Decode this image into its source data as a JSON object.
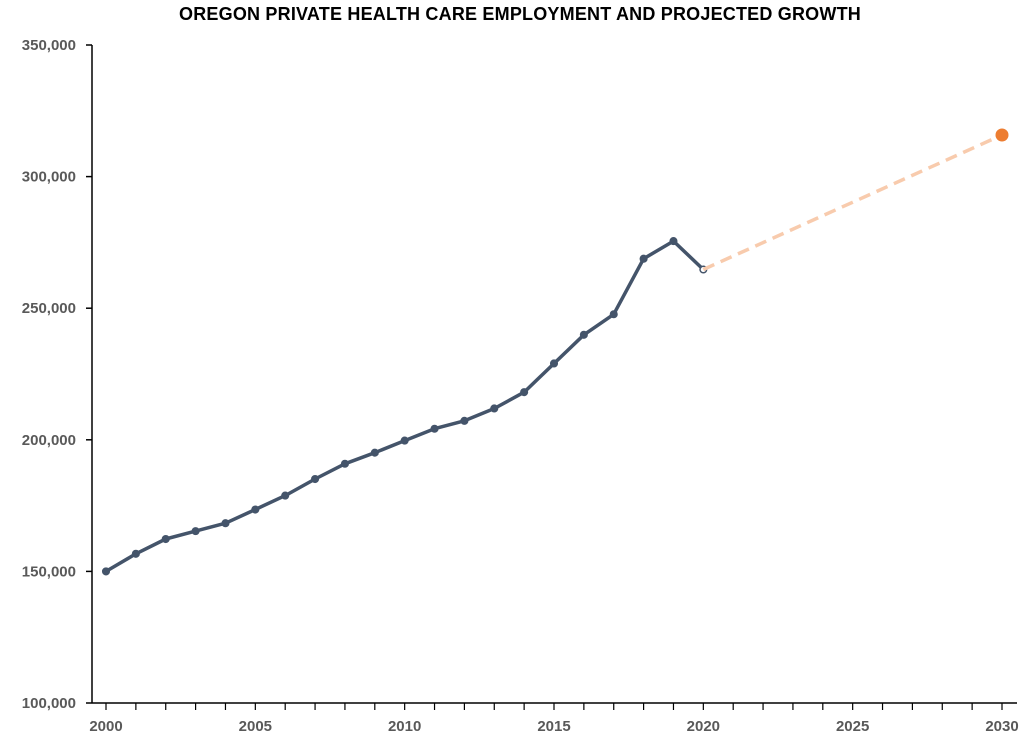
{
  "chart_data": {
    "type": "line",
    "title": "OREGON PRIVATE HEALTH CARE EMPLOYMENT AND PROJECTED GROWTH",
    "xlabel": "",
    "ylabel": "",
    "xlim": [
      2000,
      2030
    ],
    "ylim": [
      100000,
      350000
    ],
    "y_ticks": [
      "100,000",
      "150,000",
      "200,000",
      "250,000",
      "300,000",
      "350,000"
    ],
    "y_tick_values": [
      100000,
      150000,
      200000,
      250000,
      300000,
      350000
    ],
    "x_ticks": [
      "2000",
      "2005",
      "2010",
      "2015",
      "2020",
      "2025",
      "2030"
    ],
    "x_tick_values": [
      2000,
      2005,
      2010,
      2015,
      2020,
      2025,
      2030
    ],
    "grid": false,
    "legend": "none",
    "series": [
      {
        "color": "#44546a",
        "style": "solid",
        "x": [
          2000,
          2001,
          2002,
          2003,
          2004,
          2005,
          2006,
          2007,
          2008,
          2009,
          2010,
          2011,
          2012,
          2013,
          2014,
          2015,
          2016,
          2017,
          2018,
          2019,
          2020
        ],
        "values": [
          150000,
          156700,
          162300,
          165300,
          168300,
          173500,
          178800,
          185100,
          190900,
          195100,
          199700,
          204200,
          207200,
          211900,
          218100,
          229000,
          239900,
          247700,
          268800,
          275500,
          264700
        ]
      },
      {
        "color": "#f8cbad",
        "style": "dashed",
        "x": [
          2020,
          2030
        ],
        "values": [
          264700,
          315800
        ],
        "end_marker_color": "#ed7d31"
      }
    ]
  }
}
